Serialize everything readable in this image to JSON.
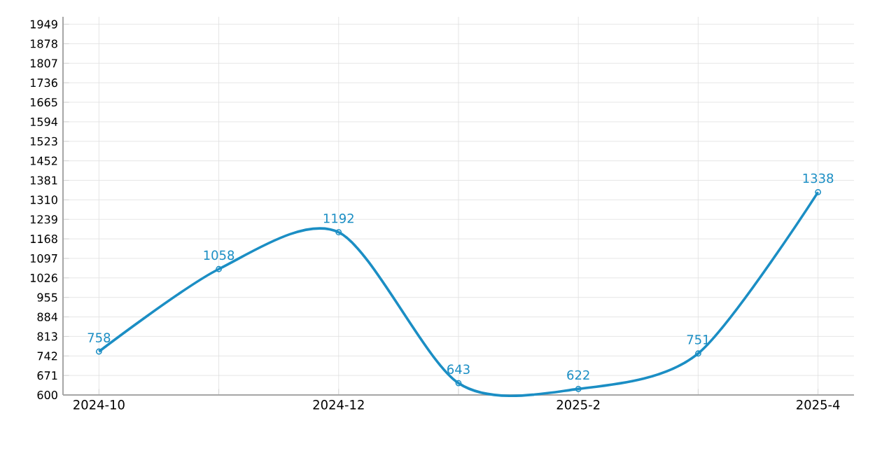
{
  "chart_data": {
    "type": "line",
    "categories": [
      "2024-10",
      null,
      "2024-12",
      null,
      "2025-2",
      null,
      "2025-4"
    ],
    "series": [
      {
        "color": "#1b8ec4",
        "values": [
          758,
          1058,
          1192,
          643,
          622,
          751,
          1338
        ]
      }
    ],
    "ylim": [
      600,
      1949
    ],
    "yticks": [
      600,
      671,
      742,
      813,
      884,
      955,
      1026,
      1097,
      1168,
      1239,
      1310,
      1381,
      1452,
      1523,
      1594,
      1665,
      1736,
      1807,
      1878,
      1949
    ],
    "grid": true,
    "data_labels": true,
    "marker": "circle",
    "line_style": "solid"
  }
}
